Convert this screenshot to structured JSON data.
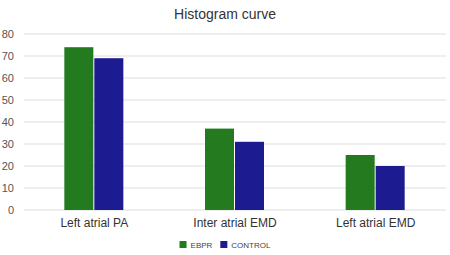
{
  "chart_data": {
    "type": "bar",
    "title": "Histogram curve",
    "categories": [
      "Left atrial PA",
      "Inter atrial EMD",
      "Left atrial EMD"
    ],
    "series": [
      {
        "name": "EBPR",
        "color": "#237a1f",
        "values": [
          74,
          37,
          25
        ]
      },
      {
        "name": "CONTROL",
        "color": "#1c1c90",
        "values": [
          69,
          31,
          20
        ]
      }
    ],
    "ylim": [
      0,
      80
    ],
    "yticks": [
      0,
      10,
      20,
      30,
      40,
      50,
      60,
      70,
      80
    ],
    "grid": true,
    "legend": "bottom"
  }
}
